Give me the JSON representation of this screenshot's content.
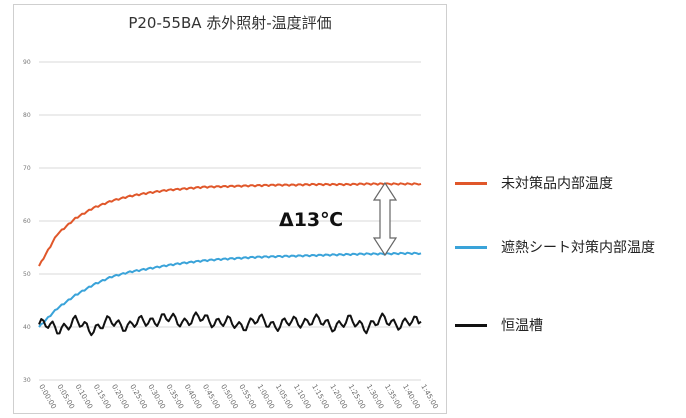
{
  "title": "P20-55BA 赤外照射-温度評価",
  "annotation": "Δ13℃",
  "chart_data": {
    "type": "line",
    "title": "P20-55BA 赤外照射-温度評価",
    "ylim": [
      30,
      90
    ],
    "y_ticks": [
      30,
      40,
      50,
      60,
      70,
      80,
      90
    ],
    "grid": true,
    "legend_position": "right",
    "x": [
      "0:00:00",
      "0:05:00",
      "0:10:00",
      "0:15:00",
      "0:20:00",
      "0:25:00",
      "0:30:00",
      "0:35:00",
      "0:40:00",
      "0:45:00",
      "0:50:00",
      "0:55:00",
      "1:00:00",
      "1:05:00",
      "1:10:00",
      "1:15:00",
      "1:20:00",
      "1:25:00",
      "1:30:00",
      "1:35:00",
      "1:40:00",
      "1:45:00"
    ],
    "series": [
      {
        "name": "未対策品内部温度",
        "color": "#e0572a",
        "values": [
          51.5,
          57.5,
          60.5,
          62.5,
          63.8,
          64.7,
          65.3,
          65.8,
          66.1,
          66.4,
          66.5,
          66.6,
          66.7,
          66.8,
          66.8,
          66.9,
          66.9,
          66.9,
          67.0,
          67.0,
          67.0,
          67.0
        ]
      },
      {
        "name": "遮熱シート対策内部温度",
        "color": "#3aa3d9",
        "values": [
          40.0,
          43.5,
          46.0,
          48.0,
          49.5,
          50.4,
          51.0,
          51.6,
          52.1,
          52.5,
          52.8,
          53.0,
          53.2,
          53.3,
          53.4,
          53.5,
          53.6,
          53.7,
          53.8,
          53.8,
          53.9,
          53.9
        ]
      },
      {
        "name": "恒温槽",
        "color": "#111111",
        "values": [
          40.5,
          39.8,
          40.8,
          39.7,
          41.0,
          40.2,
          41.3,
          41.5,
          41.2,
          41.6,
          41.0,
          40.3,
          41.2,
          40.5,
          40.8,
          41.4,
          40.3,
          41.0,
          40.2,
          41.3,
          40.6,
          41.0
        ]
      }
    ]
  }
}
